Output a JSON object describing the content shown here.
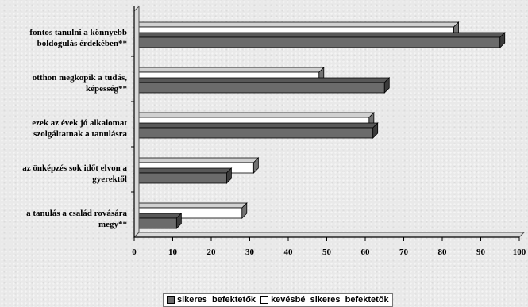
{
  "chart_data": {
    "type": "bar",
    "orientation": "horizontal",
    "title": "",
    "xlabel": "",
    "ylabel": "",
    "xlim": [
      0,
      100
    ],
    "x_ticks": [
      0,
      10,
      20,
      30,
      40,
      50,
      60,
      70,
      80,
      90,
      100
    ],
    "grid": false,
    "legend_position": "bottom",
    "categories": [
      [
        "fontos tanulni a könnyebb",
        "boldogulás érdekében**"
      ],
      [
        "otthon megkopik a tudás,",
        "képesség**"
      ],
      [
        "ezek az évek jó alkalomat",
        "szolgáltatnak a tanulásra"
      ],
      [
        "az önképzés sok időt elvon a",
        "gyerektől"
      ],
      [
        "a tanulás a család rovására",
        "megy**"
      ]
    ],
    "series": [
      {
        "name": "kevésbé  sikeres  befektetők",
        "color": "#ffffff",
        "values": [
          83,
          48,
          61,
          31,
          28
        ]
      },
      {
        "name": "sikeres  befektetők",
        "color": "#6b6b6b",
        "values": [
          95,
          65,
          62,
          24,
          11
        ]
      }
    ]
  }
}
